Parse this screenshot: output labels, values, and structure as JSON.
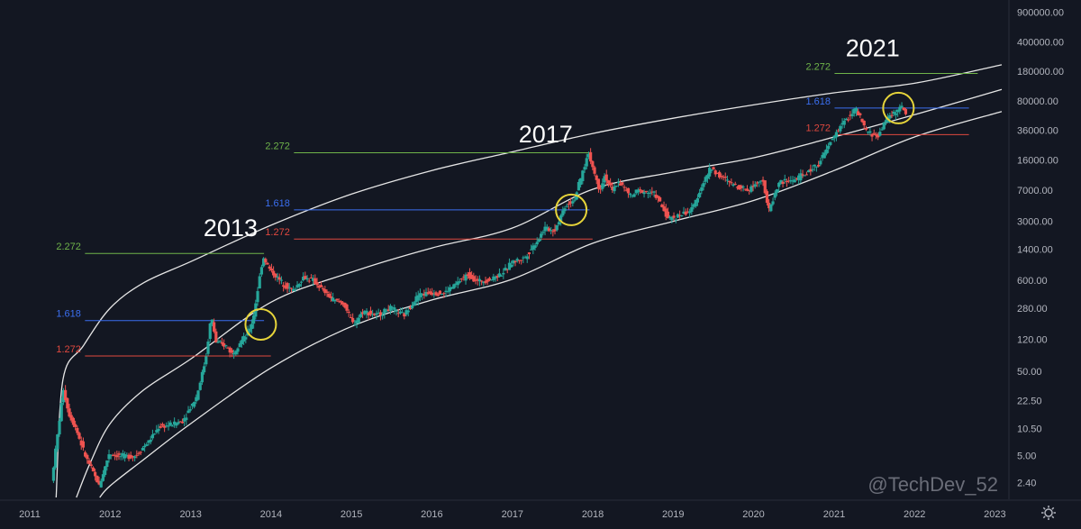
{
  "chart_data": {
    "type": "candlestick",
    "title": "",
    "xlabel": "",
    "ylabel": "",
    "scale": "log",
    "xlim": [
      "2011-01-01",
      "2023-02-01"
    ],
    "ylim": [
      1.6,
      1200000
    ],
    "grid": false,
    "background": "#131722",
    "colors": {
      "up": "#26a69a",
      "down": "#ef5350",
      "channel": "#e6e6e6",
      "circle": "#e6d43a",
      "fib_2272": "#6fb44a",
      "fib_1618": "#3b6ff0",
      "fib_1272": "#e0483f"
    },
    "y_ticks": [
      {
        "label": "900000.00",
        "value": 900000
      },
      {
        "label": "400000.00",
        "value": 400000
      },
      {
        "label": "180000.00",
        "value": 180000
      },
      {
        "label": "80000.00",
        "value": 80000
      },
      {
        "label": "36000.00",
        "value": 36000
      },
      {
        "label": "16000.00",
        "value": 16000
      },
      {
        "label": "7000.00",
        "value": 7000
      },
      {
        "label": "3000.00",
        "value": 3000
      },
      {
        "label": "1400.00",
        "value": 1400
      },
      {
        "label": "600.00",
        "value": 600
      },
      {
        "label": "280.00",
        "value": 280
      },
      {
        "label": "120.00",
        "value": 120
      },
      {
        "label": "50.00",
        "value": 50
      },
      {
        "label": "22.50",
        "value": 22.5
      },
      {
        "label": "10.50",
        "value": 10.5
      },
      {
        "label": "5.00",
        "value": 5
      },
      {
        "label": "2.40",
        "value": 2.4
      }
    ],
    "x_ticks": [
      {
        "label": "2011",
        "value": "2011-01-01"
      },
      {
        "label": "2012",
        "value": "2012-01-01"
      },
      {
        "label": "2013",
        "value": "2013-01-01"
      },
      {
        "label": "2014",
        "value": "2014-01-01"
      },
      {
        "label": "2015",
        "value": "2015-01-01"
      },
      {
        "label": "2016",
        "value": "2016-01-01"
      },
      {
        "label": "2017",
        "value": "2017-01-01"
      },
      {
        "label": "2018",
        "value": "2018-01-01"
      },
      {
        "label": "2019",
        "value": "2019-01-01"
      },
      {
        "label": "2020",
        "value": "2020-01-01"
      },
      {
        "label": "2021",
        "value": "2021-01-01"
      },
      {
        "label": "2022",
        "value": "2022-01-01"
      },
      {
        "label": "2023",
        "value": "2023-01-01"
      }
    ],
    "price_path": [
      [
        "2011-03-01",
        1.0
      ],
      [
        "2011-04-15",
        2.5
      ],
      [
        "2011-06-08",
        31
      ],
      [
        "2011-07-01",
        16
      ],
      [
        "2011-08-01",
        11
      ],
      [
        "2011-09-15",
        5
      ],
      [
        "2011-11-18",
        2.2
      ],
      [
        "2012-01-01",
        5.3
      ],
      [
        "2012-03-01",
        4.9
      ],
      [
        "2012-05-01",
        5.0
      ],
      [
        "2012-07-01",
        7.5
      ],
      [
        "2012-08-15",
        11
      ],
      [
        "2012-10-01",
        11.5
      ],
      [
        "2012-12-01",
        13
      ],
      [
        "2013-02-01",
        25
      ],
      [
        "2013-03-15",
        70
      ],
      [
        "2013-04-09",
        230
      ],
      [
        "2013-05-01",
        110
      ],
      [
        "2013-06-15",
        100
      ],
      [
        "2013-07-15",
        80
      ],
      [
        "2013-08-15",
        110
      ],
      [
        "2013-09-15",
        130
      ],
      [
        "2013-10-15",
        200
      ],
      [
        "2013-11-30",
        1150
      ],
      [
        "2014-01-01",
        800
      ],
      [
        "2014-02-01",
        650
      ],
      [
        "2014-03-01",
        550
      ],
      [
        "2014-04-15",
        450
      ],
      [
        "2014-06-01",
        650
      ],
      [
        "2014-07-15",
        600
      ],
      [
        "2014-09-01",
        450
      ],
      [
        "2014-10-15",
        350
      ],
      [
        "2014-12-01",
        320
      ],
      [
        "2015-01-14",
        180
      ],
      [
        "2015-03-01",
        260
      ],
      [
        "2015-05-01",
        230
      ],
      [
        "2015-07-01",
        280
      ],
      [
        "2015-09-01",
        230
      ],
      [
        "2015-11-05",
        400
      ],
      [
        "2016-01-01",
        430
      ],
      [
        "2016-03-01",
        420
      ],
      [
        "2016-06-17",
        700
      ],
      [
        "2016-08-01",
        580
      ],
      [
        "2016-10-01",
        620
      ],
      [
        "2016-12-01",
        760
      ],
      [
        "2017-01-05",
        1000
      ],
      [
        "2017-03-01",
        1100
      ],
      [
        "2017-05-01",
        1800
      ],
      [
        "2017-06-01",
        2500
      ],
      [
        "2017-07-15",
        2300
      ],
      [
        "2017-09-01",
        4500
      ],
      [
        "2017-10-15",
        5500
      ],
      [
        "2017-12-17",
        19500
      ],
      [
        "2018-02-05",
        7000
      ],
      [
        "2018-03-01",
        10500
      ],
      [
        "2018-04-05",
        6800
      ],
      [
        "2018-05-01",
        9000
      ],
      [
        "2018-06-29",
        5900
      ],
      [
        "2018-08-01",
        7000
      ],
      [
        "2018-10-15",
        6400
      ],
      [
        "2018-12-15",
        3200
      ],
      [
        "2019-02-01",
        3500
      ],
      [
        "2019-04-01",
        4100
      ],
      [
        "2019-05-15",
        7800
      ],
      [
        "2019-06-26",
        13000
      ],
      [
        "2019-08-01",
        10500
      ],
      [
        "2019-10-01",
        8300
      ],
      [
        "2019-12-15",
        7100
      ],
      [
        "2020-02-15",
        10000
      ],
      [
        "2020-03-13",
        3900
      ],
      [
        "2020-05-01",
        8700
      ],
      [
        "2020-07-01",
        9200
      ],
      [
        "2020-09-01",
        11000
      ],
      [
        "2020-11-01",
        15000
      ],
      [
        "2020-12-31",
        29000
      ],
      [
        "2021-02-01",
        40000
      ],
      [
        "2021-04-14",
        64000
      ],
      [
        "2021-06-01",
        35000
      ],
      [
        "2021-07-20",
        30000
      ],
      [
        "2021-09-07",
        52000
      ],
      [
        "2021-11-10",
        68000
      ],
      [
        "2021-11-25",
        57000
      ]
    ],
    "channel": [
      {
        "name": "upper",
        "points": [
          [
            "2011-05-01",
            1.6
          ],
          [
            "2011-06-01",
            40
          ],
          [
            "2011-09-01",
            100
          ],
          [
            "2012-01-01",
            280
          ],
          [
            "2012-06-01",
            560
          ],
          [
            "2013-01-01",
            1000
          ],
          [
            "2014-01-01",
            2700
          ],
          [
            "2015-01-01",
            6300
          ],
          [
            "2016-01-01",
            12000
          ],
          [
            "2017-01-01",
            20000
          ],
          [
            "2018-01-01",
            33000
          ],
          [
            "2019-01-01",
            50000
          ],
          [
            "2020-01-01",
            72000
          ],
          [
            "2021-01-01",
            100000
          ],
          [
            "2022-01-01",
            130000
          ],
          [
            "2023-02-01",
            215000
          ]
        ]
      },
      {
        "name": "middle",
        "points": [
          [
            "2011-08-01",
            1.6
          ],
          [
            "2011-10-01",
            4
          ],
          [
            "2012-01-01",
            12
          ],
          [
            "2012-06-01",
            30
          ],
          [
            "2013-01-01",
            70
          ],
          [
            "2014-01-01",
            330
          ],
          [
            "2015-01-01",
            750
          ],
          [
            "2016-01-01",
            1450
          ],
          [
            "2017-01-01",
            2500
          ],
          [
            "2018-01-01",
            7200
          ],
          [
            "2019-01-01",
            11500
          ],
          [
            "2020-01-01",
            17000
          ],
          [
            "2021-01-01",
            30000
          ],
          [
            "2022-01-01",
            55000
          ],
          [
            "2023-02-01",
            110000
          ]
        ]
      },
      {
        "name": "lower",
        "points": [
          [
            "2011-11-15",
            1.6
          ],
          [
            "2012-01-01",
            2.2
          ],
          [
            "2012-06-01",
            4.5
          ],
          [
            "2013-01-01",
            12
          ],
          [
            "2014-01-01",
            55
          ],
          [
            "2015-01-01",
            170
          ],
          [
            "2016-01-01",
            350
          ],
          [
            "2017-01-01",
            620
          ],
          [
            "2018-01-01",
            1650
          ],
          [
            "2019-01-01",
            3000
          ],
          [
            "2020-01-01",
            5300
          ],
          [
            "2021-01-01",
            12000
          ],
          [
            "2022-01-01",
            30000
          ],
          [
            "2023-02-01",
            60000
          ]
        ]
      }
    ],
    "fib_levels": [
      {
        "label": "2.272",
        "value": 1250,
        "x_start": "2011-05-01",
        "x_end": "2013-11-30",
        "color": "#6fb44a"
      },
      {
        "label": "1.618",
        "value": 200,
        "x_start": "2011-05-01",
        "x_end": "2013-11-30",
        "color": "#3b6ff0"
      },
      {
        "label": "1.272",
        "value": 76,
        "x_start": "2011-05-01",
        "x_end": "2013-12-31",
        "color": "#e0483f"
      },
      {
        "label": "2.272",
        "value": 19500,
        "x_start": "2013-12-05",
        "x_end": "2017-12-17",
        "color": "#6fb44a"
      },
      {
        "label": "1.618",
        "value": 4100,
        "x_start": "2013-12-05",
        "x_end": "2017-12-17",
        "color": "#3b6ff0"
      },
      {
        "label": "1.272",
        "value": 1850,
        "x_start": "2013-12-05",
        "x_end": "2017-12-31",
        "color": "#e0483f"
      },
      {
        "label": "2.272",
        "value": 170000,
        "x_start": "2020-08-25",
        "x_end": "2022-10-15",
        "color": "#6fb44a"
      },
      {
        "label": "1.618",
        "value": 66000,
        "x_start": "2020-08-25",
        "x_end": "2022-09-05",
        "color": "#3b6ff0"
      },
      {
        "label": "1.272",
        "value": 32000,
        "x_start": "2020-08-25",
        "x_end": "2022-09-05",
        "color": "#e0483f"
      }
    ],
    "annotations": [
      {
        "text": "2013",
        "x": "2013-07-01",
        "y": 2000
      },
      {
        "text": "2017",
        "x": "2017-06-01",
        "y": 26000
      },
      {
        "text": "2021",
        "x": "2021-06-25",
        "y": 270000
      }
    ],
    "circles": [
      {
        "x": "2013-11-15",
        "y": 180
      },
      {
        "x": "2017-09-25",
        "y": 4100
      },
      {
        "x": "2021-10-20",
        "y": 66000
      }
    ],
    "watermark": "@TechDev_52"
  }
}
